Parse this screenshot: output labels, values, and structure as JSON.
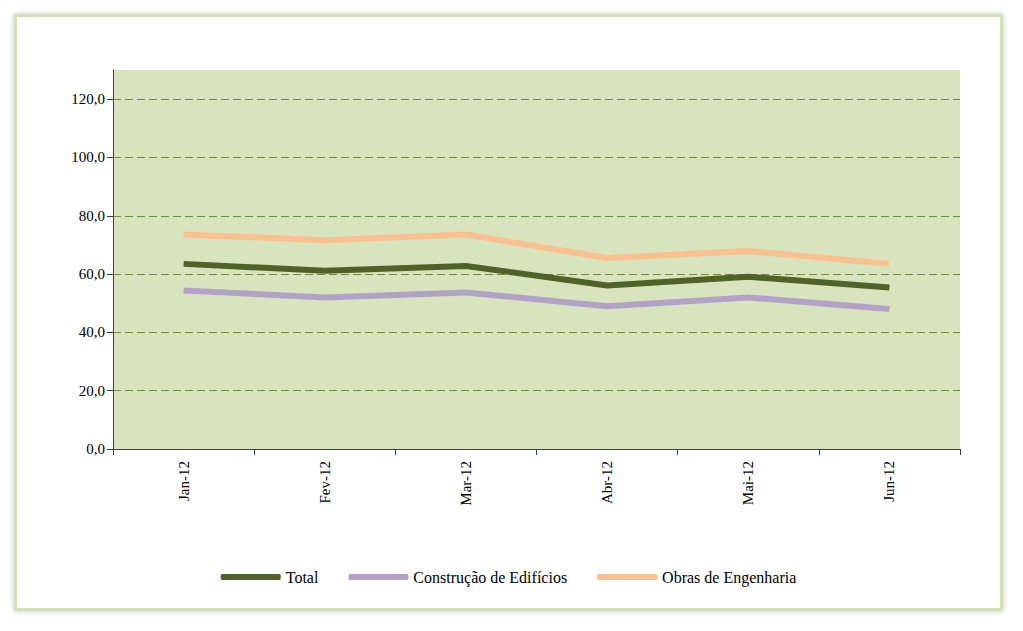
{
  "chart_data": {
    "type": "line",
    "categories": [
      "Jan-12",
      "Fev-12",
      "Mar-12",
      "Abr-12",
      "Mai-12",
      "Jun-12"
    ],
    "series": [
      {
        "name": "Total",
        "color": "#4f6228",
        "values": [
          63.5,
          61.1,
          62.8,
          56.1,
          59.1,
          55.4
        ]
      },
      {
        "name": "Construção de Edifícios",
        "color": "#b3a2c7",
        "values": [
          54.4,
          52.0,
          53.7,
          49.0,
          52.0,
          48.0
        ]
      },
      {
        "name": "Obras de Engenharia",
        "color": "#fac090",
        "values": [
          73.6,
          71.6,
          73.6,
          65.5,
          67.9,
          63.5
        ]
      }
    ],
    "ylim": [
      0,
      130
    ],
    "yticks": [
      {
        "value": 0,
        "label": "0,0"
      },
      {
        "value": 20,
        "label": "20,0"
      },
      {
        "value": 40,
        "label": "40,0"
      },
      {
        "value": 60,
        "label": "60,0"
      },
      {
        "value": 80,
        "label": "80,0"
      },
      {
        "value": 100,
        "label": "100,0"
      },
      {
        "value": 120,
        "label": "120,0"
      }
    ],
    "grid": true,
    "legend": "bottom"
  }
}
